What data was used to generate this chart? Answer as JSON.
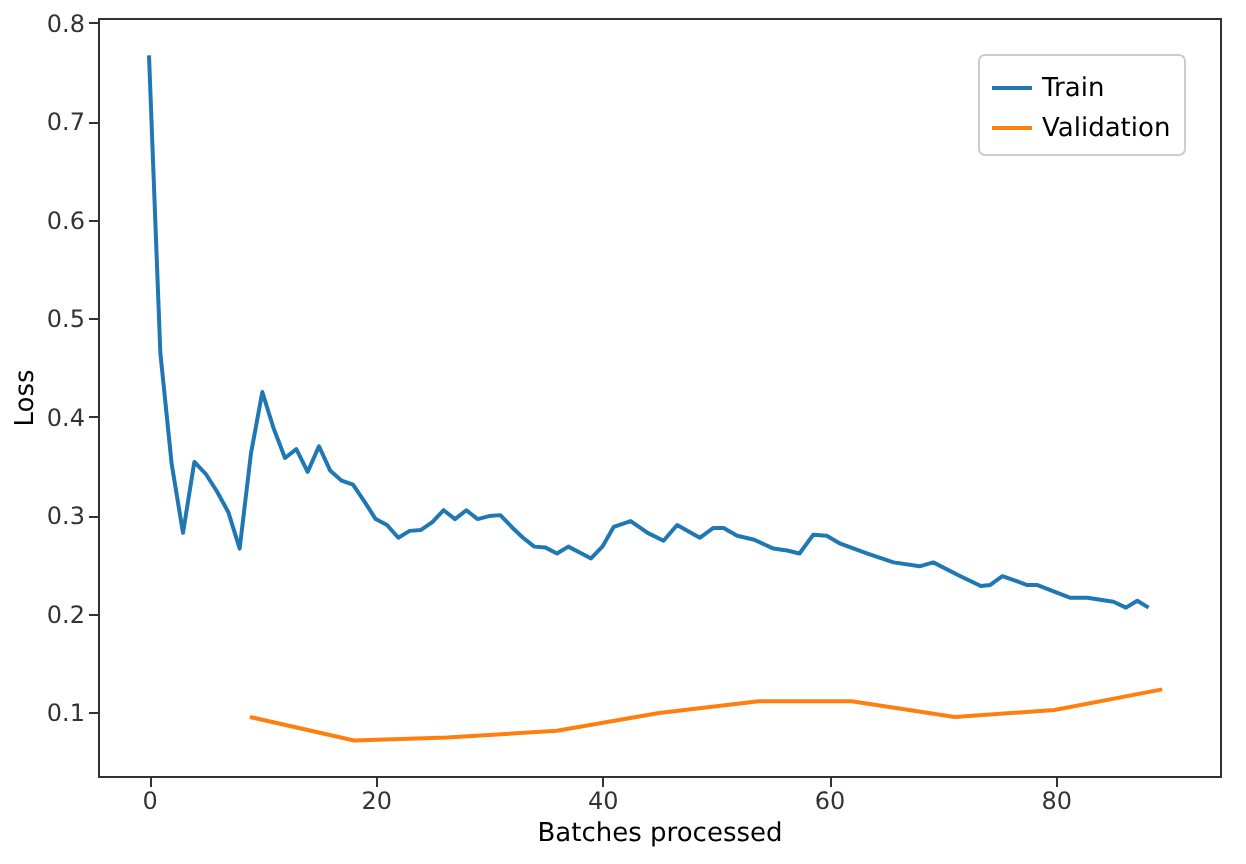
{
  "chart_data": {
    "type": "line",
    "xlabel": "Batches processed",
    "ylabel": "Loss",
    "xlim": [
      -4.5,
      94.5
    ],
    "xticks": [
      0,
      20,
      40,
      60,
      80
    ],
    "ylim": [
      0.035,
      0.805
    ],
    "yticks": [
      0.1,
      0.2,
      0.3,
      0.4,
      0.5,
      0.6,
      0.7,
      0.8
    ],
    "grid": false,
    "legend": "top right",
    "marker": "none",
    "line_style": "solid",
    "series": [
      {
        "name": "Train",
        "color": "#1f77b4",
        "x": [
          0,
          1,
          2,
          3,
          4,
          5,
          6,
          7,
          8,
          9,
          10,
          11,
          12,
          13,
          14,
          15,
          16,
          17,
          18,
          19,
          20,
          21,
          22,
          23,
          24,
          25,
          26,
          27,
          28,
          29,
          30,
          31,
          32,
          33,
          34,
          35,
          36,
          37,
          38,
          39,
          40,
          41,
          42.5,
          44,
          45.4,
          46.6,
          48.6,
          49.8,
          50.7,
          51.9,
          53.4,
          55.1,
          56.3,
          57.4,
          58.6,
          59.8,
          61,
          63.4,
          65.7,
          68,
          69.2,
          71.6,
          73.4,
          74.2,
          75.3,
          77.5,
          78.4,
          81.3,
          82.8,
          85.1,
          86.2,
          87.2,
          88.2
        ],
        "values": [
          0.767,
          0.465,
          0.352,
          0.282,
          0.354,
          0.342,
          0.324,
          0.303,
          0.266,
          0.363,
          0.425,
          0.388,
          0.358,
          0.367,
          0.344,
          0.37,
          0.345,
          0.335,
          0.331,
          0.314,
          0.296,
          0.29,
          0.277,
          0.284,
          0.285,
          0.293,
          0.305,
          0.296,
          0.305,
          0.296,
          0.299,
          0.3,
          0.288,
          0.277,
          0.268,
          0.267,
          0.261,
          0.268,
          0.262,
          0.256,
          0.268,
          0.288,
          0.294,
          0.282,
          0.274,
          0.29,
          0.277,
          0.287,
          0.287,
          0.279,
          0.275,
          0.266,
          0.264,
          0.261,
          0.28,
          0.279,
          0.271,
          0.261,
          0.252,
          0.248,
          0.252,
          0.238,
          0.228,
          0.229,
          0.238,
          0.229,
          0.229,
          0.216,
          0.216,
          0.212,
          0.206,
          0.213,
          0.206
        ]
      },
      {
        "name": "Validation",
        "color": "#ff7f0e",
        "x": [
          8.9,
          18.1,
          26.3,
          36,
          45,
          53.8,
          62,
          71.1,
          79.9,
          89.4
        ],
        "values": [
          0.095,
          0.071,
          0.074,
          0.081,
          0.099,
          0.111,
          0.111,
          0.095,
          0.102,
          0.123
        ]
      }
    ]
  }
}
